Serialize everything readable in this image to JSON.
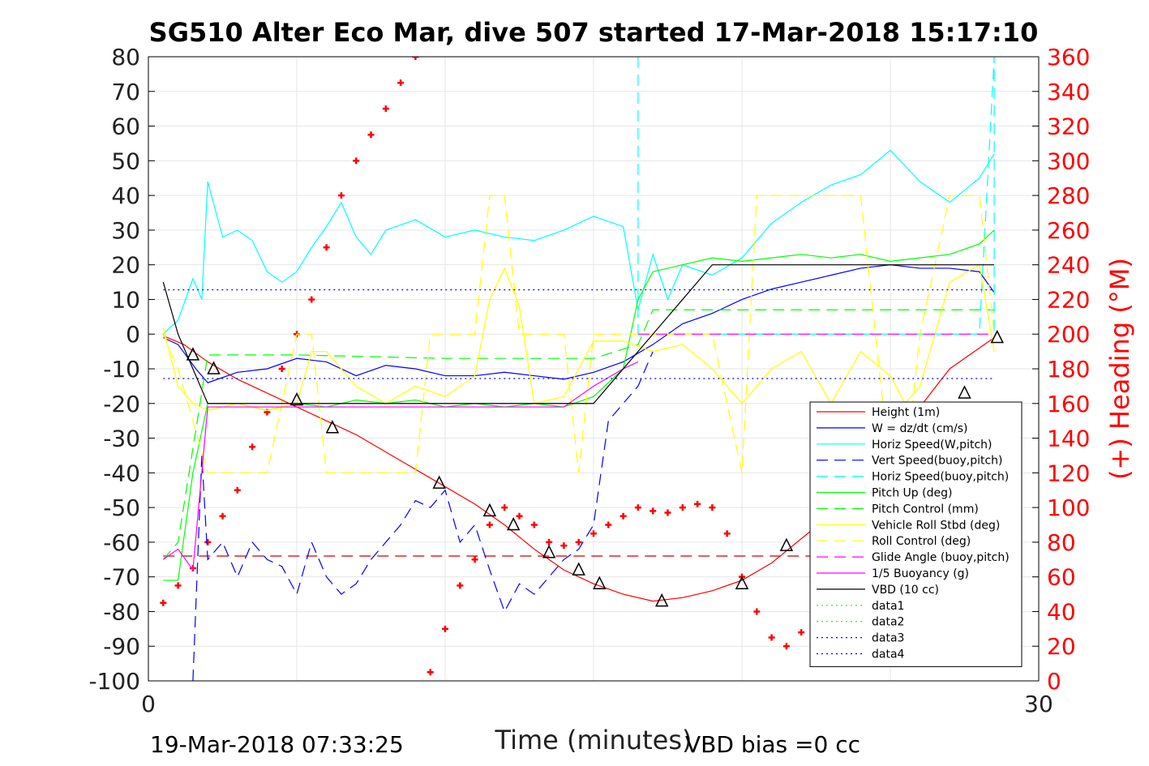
{
  "title": "SG510 Alter Eco Mar, dive 507 started 17-Mar-2018 15:17:10",
  "footer": {
    "timestamp": "19-Mar-2018 07:33:25",
    "vbd_bias": "VBD bias =0 cc"
  },
  "chart_data": {
    "type": "line",
    "title": "SG510 Alter Eco Mar, dive 507 started 17-Mar-2018 15:17:10",
    "xlabel": "Time (minutes)",
    "ylabel": "",
    "y2label": "(+) Heading (°M)",
    "xlim": [
      0,
      30
    ],
    "ylim": [
      -100,
      80
    ],
    "y2lim": [
      0,
      360
    ],
    "x_ticks": [
      "0",
      "30"
    ],
    "y_ticks": [
      "80",
      "70",
      "60",
      "50",
      "40",
      "30",
      "20",
      "10",
      "0",
      "-10",
      "-20",
      "-30",
      "-40",
      "-50",
      "-60",
      "-70",
      "-80",
      "-90",
      "-100"
    ],
    "y2_ticks": [
      "360",
      "340",
      "320",
      "300",
      "280",
      "260",
      "240",
      "220",
      "200",
      "180",
      "160",
      "140",
      "120",
      "100",
      "80",
      "60",
      "40",
      "20",
      "0"
    ],
    "grid": true,
    "legend_position": "lower-right",
    "colors": {
      "height": "#ff0000",
      "w": "#0000ff",
      "horiz_w": "#00ffff",
      "vert_buoy": "#0000ff",
      "horiz_buoy": "#00ffff",
      "pitch": "#00ff00",
      "pitch_ctl": "#00ff00",
      "roll": "#ffff00",
      "roll_ctl": "#ffff00",
      "glide": "#ff00ff",
      "buoy": "#ff00ff",
      "vbd": "#000000",
      "heading": "#ff0000",
      "right_axis": "#ff0000"
    },
    "series": [
      {
        "key": "height",
        "name": "Height (1m)",
        "style": "solid",
        "color": "#ff0000",
        "x": [
          0.5,
          1.2,
          2,
          3,
          4,
          5,
          6,
          7,
          8,
          9,
          10,
          11,
          12,
          13,
          14,
          15,
          16,
          17,
          18,
          19,
          20,
          21,
          22,
          23,
          24,
          25,
          26,
          27,
          28.5
        ],
        "y": [
          -0.5,
          -3,
          -8,
          -13,
          -17,
          -21,
          -25,
          -29,
          -34,
          -39,
          -44,
          -49,
          -55,
          -62,
          -68,
          -72,
          -75,
          -77,
          -76,
          -74,
          -71,
          -66,
          -59,
          -52,
          -43,
          -33,
          -21,
          -10,
          -1
        ]
      },
      {
        "key": "w",
        "name": "W = dz/dt (cm/s)",
        "style": "solid",
        "color": "#0000ff",
        "x": [
          0.5,
          1,
          1.6,
          2,
          3,
          4,
          5,
          6,
          7,
          8,
          9,
          10,
          11,
          12,
          13,
          14,
          15,
          16,
          17,
          18,
          19,
          20,
          21,
          22,
          23,
          24,
          25,
          26,
          27,
          28,
          28.5
        ],
        "y": [
          -1,
          -3,
          -10,
          -14,
          -11,
          -10,
          -7,
          -8,
          -12,
          -9,
          -10,
          -12,
          -12,
          -11,
          -12,
          -13,
          -11,
          -8,
          -3,
          3,
          6,
          10,
          13,
          15,
          17,
          19,
          20,
          19,
          19,
          18,
          12
        ]
      },
      {
        "key": "horiz_w",
        "name": "Horiz Speed(W,pitch)",
        "style": "solid",
        "color": "#00ffff",
        "x": [
          0.5,
          1,
          1.5,
          1.8,
          2,
          2.5,
          3,
          3.5,
          4,
          4.5,
          5,
          5.5,
          6,
          6.5,
          7,
          7.5,
          8,
          9,
          10,
          11,
          12,
          13,
          14,
          15,
          16,
          16.5,
          17,
          17.5,
          18,
          19,
          20,
          21,
          22,
          23,
          24,
          25,
          26,
          27,
          28,
          28.5
        ],
        "y": [
          0,
          4,
          16,
          10,
          44,
          28,
          30,
          27,
          18,
          15,
          18,
          25,
          31,
          38,
          28,
          23,
          30,
          33,
          28,
          30,
          28,
          27,
          30,
          34,
          31,
          7,
          23,
          10,
          20,
          17,
          22,
          32,
          38,
          43,
          46,
          53,
          44,
          38,
          45,
          52
        ]
      },
      {
        "key": "vert_buoy",
        "name": "Vert Speed(buoy,pitch)",
        "style": "dashed",
        "color": "#0000ff",
        "x": [
          1.5,
          1.8,
          2,
          2.5,
          3,
          3.5,
          4,
          4.5,
          5,
          5.5,
          6,
          6.5,
          7,
          7.5,
          8,
          8.5,
          9,
          9.5,
          10,
          10.5,
          11,
          11.5,
          12,
          12.5,
          13,
          13.5,
          14,
          14.5,
          15,
          15.5,
          16,
          16.5,
          17
        ],
        "y": [
          -100,
          -35,
          -65,
          -60,
          -70,
          -60,
          -65,
          -67,
          -75,
          -60,
          -70,
          -75,
          -72,
          -65,
          -60,
          -55,
          -48,
          -50,
          -45,
          -60,
          -55,
          -68,
          -80,
          -72,
          -75,
          -70,
          -65,
          -62,
          -55,
          -25,
          -20,
          -15,
          -5
        ]
      },
      {
        "key": "horiz_buoy",
        "name": "Horiz Speed(buoy,pitch)",
        "style": "dashed",
        "color": "#00ffff",
        "x": [
          16.5,
          16.5,
          17,
          20,
          25,
          28,
          28.5,
          28.5
        ],
        "y": [
          80,
          0,
          0,
          0,
          0,
          0,
          80,
          0
        ]
      },
      {
        "key": "pitch",
        "name": "Pitch Up (deg)",
        "style": "solid",
        "color": "#00ff00",
        "x": [
          0.5,
          1,
          1.5,
          2,
          3,
          4,
          5,
          6,
          7,
          8,
          9,
          10,
          11,
          12,
          13,
          14,
          15,
          16,
          16.5,
          17,
          18,
          19,
          20,
          21,
          22,
          23,
          24,
          25,
          26,
          27,
          28,
          28.5
        ],
        "y": [
          -71,
          -71,
          -40,
          -20,
          -20,
          -22,
          -20,
          -21,
          -19,
          -20,
          -19,
          -21,
          -20,
          -21,
          -20,
          -21,
          -18,
          -10,
          10,
          18,
          20,
          22,
          21,
          22,
          23,
          22,
          23,
          21,
          22,
          23,
          26,
          30
        ]
      },
      {
        "key": "pitch_ctl",
        "name": "Pitch Control (mm)",
        "style": "dashed",
        "color": "#00ff00",
        "x": [
          0.5,
          1,
          2,
          5,
          10,
          15,
          16.5,
          17,
          20,
          25,
          28.5
        ],
        "y": [
          -65,
          -60,
          -6,
          -6,
          -7,
          -7,
          -3,
          7,
          7,
          7,
          7
        ]
      },
      {
        "key": "roll",
        "name": "Vehicle Roll Stbd (deg)",
        "style": "solid",
        "color": "#ffff00",
        "x": [
          0.5,
          1,
          1.5,
          2,
          3,
          4,
          5,
          5.5,
          6,
          7,
          8,
          9,
          10,
          11,
          11.5,
          12,
          12.5,
          13,
          14,
          15,
          16,
          17,
          18,
          19,
          20,
          21,
          22,
          23,
          24,
          25,
          25.5,
          26,
          27,
          28,
          28.5
        ],
        "y": [
          2,
          -15,
          -20,
          -22,
          -20,
          -22,
          -20,
          -5,
          -5,
          -15,
          -20,
          -15,
          -18,
          -12,
          10,
          19,
          8,
          -20,
          -18,
          -2,
          -2,
          -5,
          -3,
          -10,
          -20,
          -10,
          -5,
          -20,
          -5,
          -12,
          -20,
          -15,
          15,
          20,
          -5
        ]
      },
      {
        "key": "roll_ctl",
        "name": "Roll Control (deg)",
        "style": "dashed",
        "color": "#ffff00",
        "x": [
          0.5,
          1,
          2,
          4,
          5,
          5.5,
          6,
          7,
          8,
          9,
          9.5,
          10,
          11,
          11.5,
          12,
          12.5,
          13,
          14,
          14.5,
          15,
          16,
          17,
          18,
          19,
          20,
          20.5,
          21,
          22,
          23,
          24,
          25,
          25.5,
          26,
          27,
          28,
          28.5
        ],
        "y": [
          0,
          -10,
          -40,
          -40,
          0,
          0,
          -40,
          -40,
          -40,
          -40,
          0,
          0,
          0,
          40,
          40,
          0,
          0,
          0,
          -40,
          0,
          0,
          0,
          0,
          0,
          -40,
          40,
          40,
          40,
          40,
          40,
          -40,
          -40,
          0,
          40,
          40,
          0
        ]
      },
      {
        "key": "glide",
        "name": "Glide Angle (buoy,pitch)",
        "style": "dashed",
        "color": "#ff00ff",
        "x": [
          16.5,
          17,
          20,
          25,
          28.5
        ],
        "y": [
          0,
          0,
          0,
          0,
          0
        ]
      },
      {
        "key": "buoy",
        "name": "1/5 Buoyancy (g)",
        "style": "solid",
        "color": "#ff00ff",
        "x": [
          0.5,
          1,
          1.5,
          2,
          3,
          4,
          5,
          6,
          7,
          8,
          9,
          10,
          11,
          12,
          13,
          14,
          15,
          16,
          16.5
        ],
        "y": [
          -65,
          -62,
          -68,
          -21,
          -21,
          -21,
          -21,
          -21,
          -21,
          -21,
          -21,
          -21,
          -21,
          -21,
          -21,
          -21,
          -15,
          -10,
          -8
        ]
      },
      {
        "key": "vbd",
        "name": "VBD (10 cc)",
        "style": "solid",
        "color": "#000000",
        "x": [
          0.5,
          1,
          1.5,
          2,
          5,
          10,
          15,
          16,
          17,
          18,
          19,
          20,
          25,
          28.5
        ],
        "y": [
          15,
          0,
          -10,
          -20,
          -20,
          -20,
          -20,
          -10,
          0,
          10,
          20,
          20,
          20,
          20
        ]
      },
      {
        "key": "data1",
        "name": "data1",
        "style": "dotted",
        "color": "#00ff00",
        "x": [],
        "y": []
      },
      {
        "key": "data2",
        "name": "data2",
        "style": "dotted",
        "color": "#00ff00",
        "x": [],
        "y": []
      },
      {
        "key": "data3",
        "name": "data3",
        "style": "dotted",
        "color": "#0000ff",
        "x": [
          0.5,
          28.5
        ],
        "y": [
          12.8,
          12.8
        ]
      },
      {
        "key": "data4",
        "name": "data4",
        "style": "dotted",
        "color": "#0000ff",
        "x": [
          0.5,
          28.5
        ],
        "y": [
          -12.8,
          -12.8
        ]
      }
    ],
    "heading_axis_series": [
      {
        "key": "pitch_ctl_ref",
        "style": "dashed",
        "color": "#cc0000",
        "x": [
          0.5,
          28.5
        ],
        "y": [
          72,
          72
        ]
      },
      {
        "key": "heading",
        "style": "plus",
        "color": "#ff0000",
        "x": [
          0.5,
          1,
          1.5,
          2,
          2.5,
          3,
          3.5,
          4,
          4.5,
          5,
          5.5,
          6,
          6.5,
          7,
          7.5,
          8,
          8.5,
          9,
          9.5,
          10,
          10.5,
          11,
          11.5,
          12,
          12.5,
          13,
          13.5,
          14,
          14.5,
          15,
          15.5,
          16,
          16.5,
          17,
          17.5,
          18,
          18.5,
          19,
          19.5,
          20,
          20.5,
          21,
          21.5,
          22,
          22.5,
          23,
          23.5,
          24,
          24.5,
          25,
          25.5,
          26,
          26.5,
          27,
          27.5,
          28,
          28.5
        ],
        "y": [
          45,
          55,
          65,
          80,
          95,
          110,
          135,
          155,
          180,
          200,
          220,
          250,
          280,
          300,
          315,
          330,
          345,
          360,
          5,
          30,
          55,
          70,
          90,
          100,
          95,
          90,
          80,
          78,
          80,
          85,
          90,
          95,
          100,
          98,
          97,
          100,
          102,
          100,
          85,
          60,
          40,
          25,
          20,
          28,
          35,
          60,
          70,
          80,
          85,
          95,
          70,
          50,
          35,
          25,
          30,
          38,
          47
        ]
      }
    ],
    "markers": {
      "description": "open black triangles along the Height trace",
      "x": [
        1.5,
        2.2,
        5,
        6.2,
        9.8,
        11.5,
        12.3,
        13.5,
        14.5,
        15.2,
        17.3,
        20,
        21.5,
        23,
        25,
        26.5,
        27.5,
        28.6
      ],
      "y": [
        -6,
        -10,
        -19,
        -27,
        -43,
        -51,
        -55,
        -63,
        -68,
        -72,
        -77,
        -72,
        -61,
        -48,
        -36,
        -30,
        -17,
        -1
      ]
    }
  },
  "legend": {
    "entries": [
      {
        "label": "Height (1m)",
        "color": "#ff0000",
        "style": "solid"
      },
      {
        "label": "W = dz/dt (cm/s)",
        "color": "#0000ff",
        "style": "solid"
      },
      {
        "label": "Horiz Speed(W,pitch)",
        "color": "#00ffff",
        "style": "solid"
      },
      {
        "label": "Vert Speed(buoy,pitch)",
        "color": "#0000ff",
        "style": "dashed"
      },
      {
        "label": "Horiz Speed(buoy,pitch)",
        "color": "#00ffff",
        "style": "dashed"
      },
      {
        "label": "Pitch Up (deg)",
        "color": "#00ff00",
        "style": "solid"
      },
      {
        "label": "Pitch Control (mm)",
        "color": "#00ff00",
        "style": "dashed"
      },
      {
        "label": "Vehicle Roll Stbd (deg)",
        "color": "#ffff00",
        "style": "solid"
      },
      {
        "label": "Roll Control (deg)",
        "color": "#ffff00",
        "style": "dashed"
      },
      {
        "label": "Glide Angle (buoy,pitch)",
        "color": "#ff00ff",
        "style": "dashed"
      },
      {
        "label": "1/5 Buoyancy (g)",
        "color": "#ff00ff",
        "style": "solid"
      },
      {
        "label": "VBD (10 cc)",
        "color": "#000000",
        "style": "solid"
      },
      {
        "label": "data1",
        "color": "#00ff00",
        "style": "dotted"
      },
      {
        "label": "data2",
        "color": "#00ff00",
        "style": "dotted"
      },
      {
        "label": "data3",
        "color": "#0000ff",
        "style": "dotted"
      },
      {
        "label": "data4",
        "color": "#0000ff",
        "style": "dotted"
      }
    ]
  }
}
